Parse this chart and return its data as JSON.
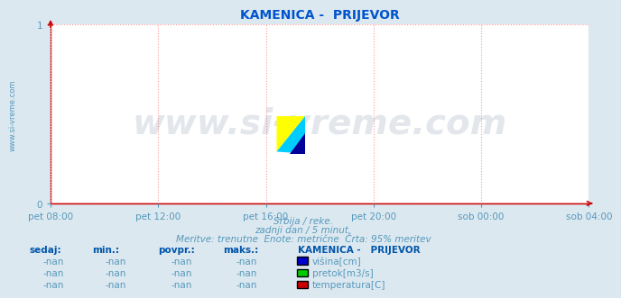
{
  "title": "KAMENICA -  PRIJEVOR",
  "title_color": "#0055cc",
  "title_fontsize": 10,
  "bg_color": "#dce8f0",
  "plot_bg_color": "#ffffff",
  "grid_color": "#ff9999",
  "grid_style": ":",
  "axis_color": "#cc0000",
  "tick_color": "#5599bb",
  "ylabel_text": "www.si-vreme.com",
  "ylabel_color": "#5599bb",
  "xlim_labels": [
    "pet 08:00",
    "pet 12:00",
    "pet 16:00",
    "pet 20:00",
    "sob 00:00",
    "sob 04:00"
  ],
  "xlim": [
    0,
    1
  ],
  "ylim": [
    0,
    1
  ],
  "yticks": [
    0,
    1
  ],
  "subtitle1": "Srbija / reke.",
  "subtitle2": "zadnji dan / 5 minut.",
  "subtitle3": "Meritve: trenutne  Enote: metrične  Črta: 95% meritev",
  "subtitle_color": "#5599bb",
  "subtitle_fontsize": 7.5,
  "table_header": [
    "sedaj:",
    "min.:",
    "povpr.:",
    "maks.:"
  ],
  "table_values": [
    "-nan",
    "-nan",
    "-nan",
    "-nan"
  ],
  "legend_title": "KAMENICA -   PRIJEVOR",
  "legend_items": [
    {
      "label": "višina[cm]",
      "color": "#0000cc"
    },
    {
      "label": "pretok[m3/s]",
      "color": "#00cc00"
    },
    {
      "label": "temperatura[C]",
      "color": "#cc0000"
    }
  ],
  "watermark_text": "www.si-vreme.com",
  "watermark_color": "#1a3a6a",
  "watermark_alpha": 0.12,
  "watermark_fontsize": 28,
  "logo_colors": {
    "yellow": "#ffff00",
    "cyan": "#00ccff",
    "blue": "#000099"
  }
}
